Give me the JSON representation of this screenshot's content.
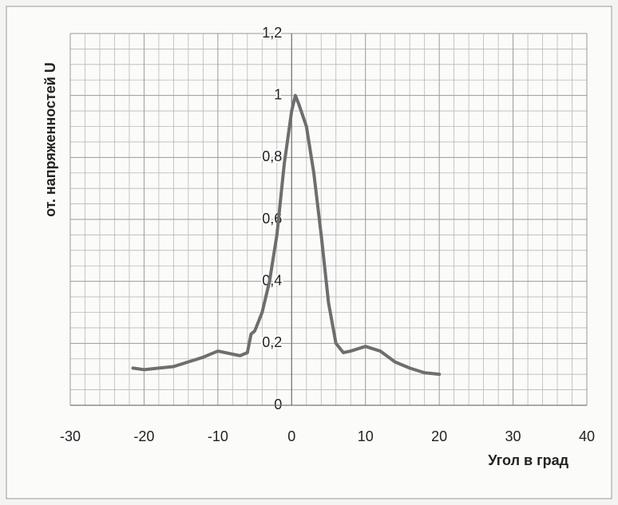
{
  "chart_data": {
    "type": "line",
    "y_label": "от. напряженностей U",
    "x_label": "Угол в град",
    "x": [
      -21.5,
      -20,
      -18,
      -16,
      -14,
      -12,
      -10,
      -9,
      -8,
      -7,
      -6,
      -5.5,
      -5,
      -4,
      -3,
      -2,
      -1,
      0,
      0.5,
      1,
      2,
      3,
      4,
      5,
      6,
      7,
      8,
      10,
      12,
      14,
      16,
      18,
      20
    ],
    "values": [
      0.12,
      0.115,
      0.12,
      0.125,
      0.14,
      0.155,
      0.175,
      0.17,
      0.165,
      0.16,
      0.17,
      0.23,
      0.24,
      0.3,
      0.4,
      0.55,
      0.78,
      0.95,
      1.0,
      0.97,
      0.9,
      0.75,
      0.55,
      0.33,
      0.2,
      0.17,
      0.175,
      0.19,
      0.175,
      0.14,
      0.12,
      0.105,
      0.1
    ],
    "color": "#6e6e6e",
    "xlim": [
      -30,
      40
    ],
    "xticks": [
      -30,
      -20,
      -10,
      0,
      10,
      20,
      30,
      40
    ],
    "ylim": [
      0,
      1.2
    ],
    "yticks": [
      0,
      {
        "value": 0.2,
        "label": "0,2"
      },
      {
        "value": 0.4,
        "label": "0,4"
      },
      {
        "value": 0.6,
        "label": "0,6"
      },
      {
        "value": 0.8,
        "label": "0,8"
      },
      1,
      {
        "value": 1.2,
        "label": "1,2"
      }
    ],
    "grid": true
  }
}
